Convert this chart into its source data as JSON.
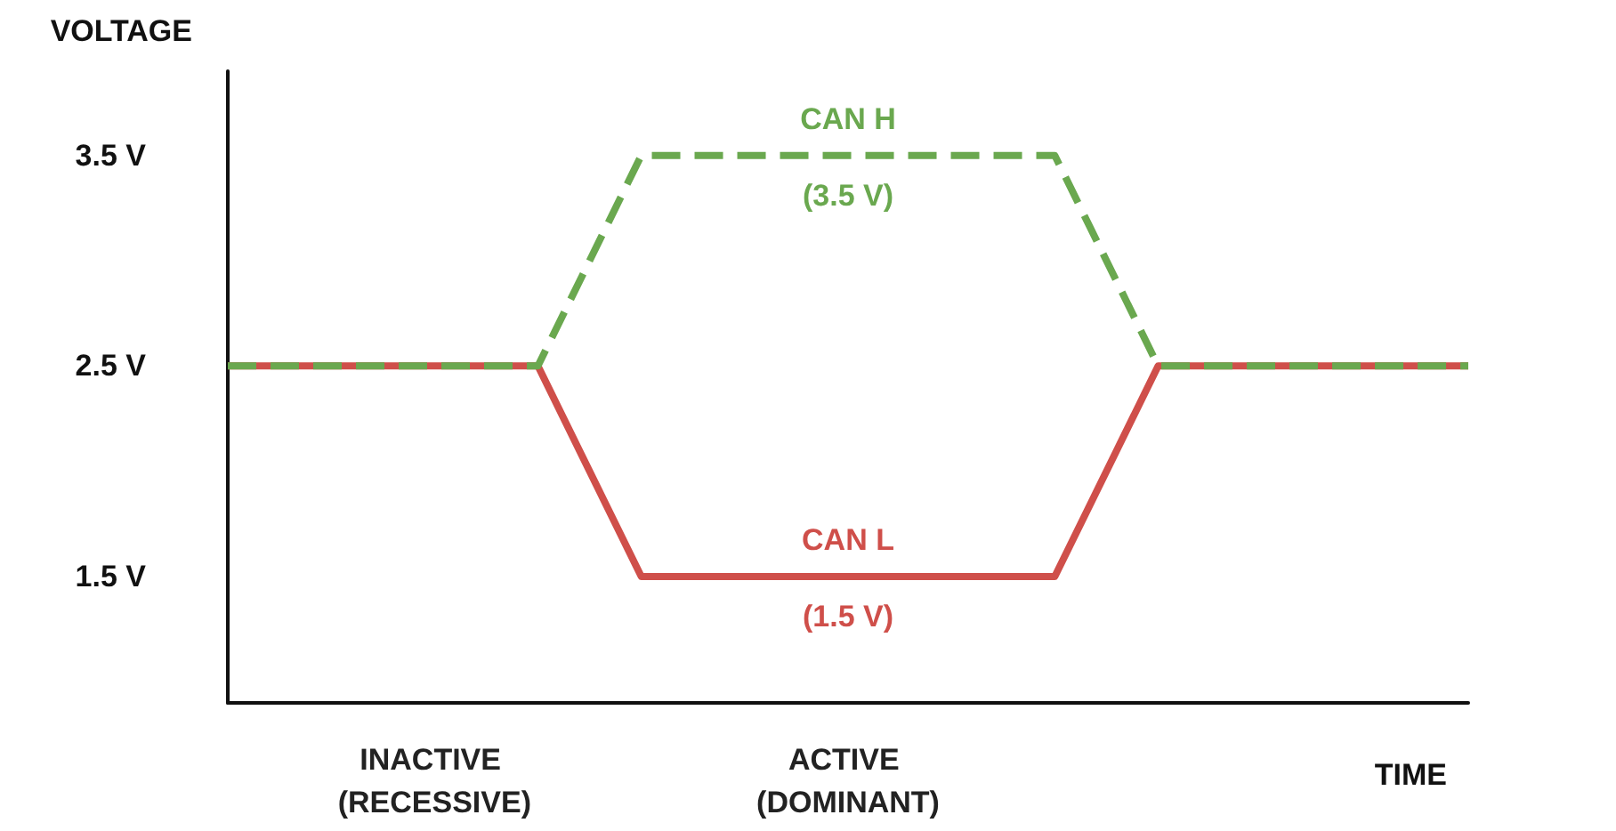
{
  "chart_data": {
    "type": "line",
    "ylabel": "VOLTAGE",
    "xlabel": "TIME",
    "categories": [
      null,
      null,
      "INACTIVE (RECESSIVE)",
      null,
      null,
      null,
      "ACTIVE (DOMINANT)",
      null,
      null,
      null,
      null,
      null,
      null
    ],
    "ylim": [
      0.9,
      3.9
    ],
    "yticks": [
      {
        "value": 1.5,
        "label": "1.5 V"
      },
      {
        "value": 2.5,
        "label": "2.5 V"
      },
      {
        "value": 3.5,
        "label": "3.5 V"
      }
    ],
    "series": [
      {
        "name": "CAN H",
        "color": "#6aa84f",
        "line_style": "dashed",
        "values": [
          2.5,
          2.5,
          2.5,
          2.5,
          3.5,
          3.5,
          3.5,
          3.5,
          3.5,
          2.5,
          2.5,
          2.5,
          2.5
        ],
        "value_labels": [
          null,
          null,
          null,
          null,
          null,
          null,
          "(3.5 V)",
          null,
          null,
          null,
          null,
          null,
          null
        ]
      },
      {
        "name": "CAN L",
        "color": "#cf4f4a",
        "line_style": "solid",
        "values": [
          2.5,
          2.5,
          2.5,
          2.5,
          1.5,
          1.5,
          1.5,
          1.5,
          1.5,
          2.5,
          2.5,
          2.5,
          2.5
        ],
        "value_labels": [
          null,
          null,
          null,
          null,
          null,
          null,
          "(1.5 V)",
          null,
          null,
          null,
          null,
          null,
          null
        ]
      }
    ],
    "marker": "none",
    "grid": false,
    "legend": false
  }
}
